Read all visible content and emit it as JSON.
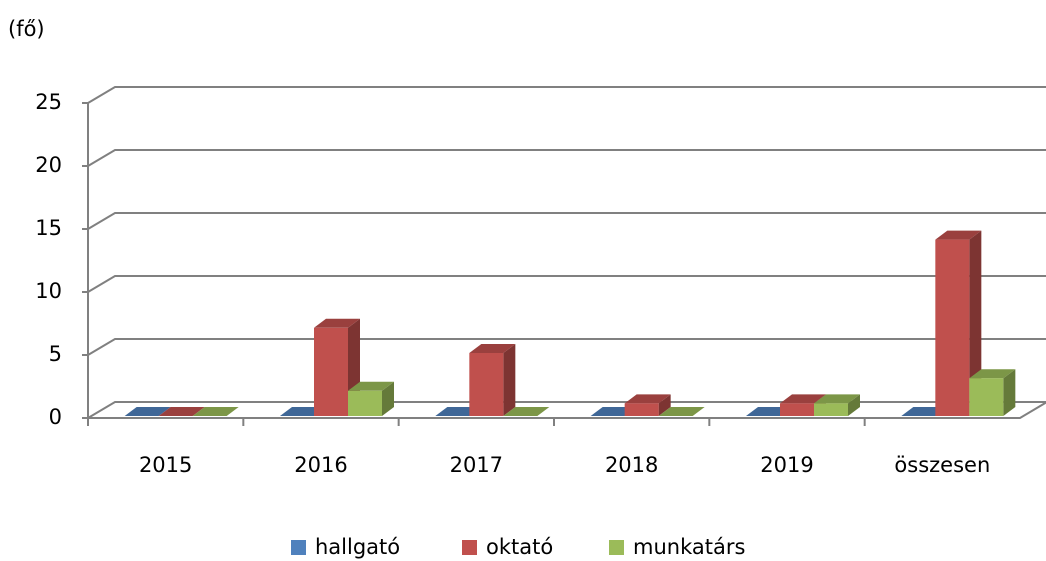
{
  "chart_data": {
    "type": "bar3d",
    "y_label": "(fő)",
    "categories": [
      "2015",
      "2016",
      "2017",
      "2018",
      "2019",
      "összesen"
    ],
    "series": [
      {
        "name": "hallgató",
        "color": "#4f81bd",
        "values": [
          0,
          0,
          0,
          0,
          0,
          0
        ]
      },
      {
        "name": "oktató",
        "color": "#c0504d",
        "values": [
          0,
          7,
          5,
          1,
          1,
          14
        ]
      },
      {
        "name": "munkatárs",
        "color": "#9bbb59",
        "values": [
          0,
          2,
          0,
          0,
          1,
          3
        ]
      }
    ],
    "ylim": [
      0,
      25
    ],
    "yticks": [
      0,
      5,
      10,
      15,
      20,
      25
    ],
    "grid": true,
    "legend": "bottom"
  }
}
